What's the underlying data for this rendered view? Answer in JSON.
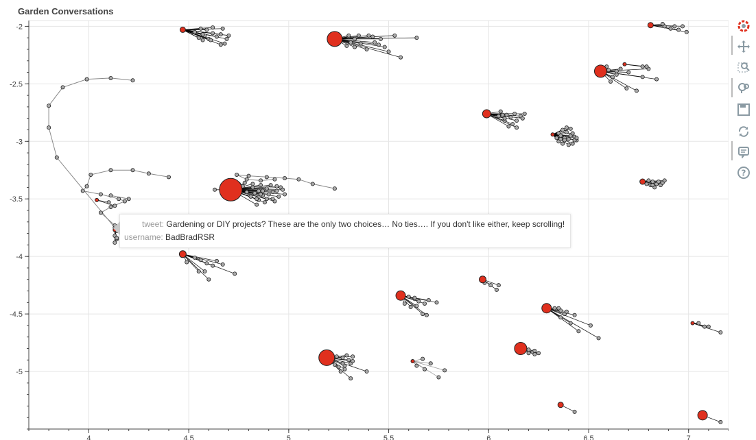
{
  "chart_data": {
    "type": "scatter",
    "title": "Garden Conversations",
    "xlim": [
      3.7,
      7.2
    ],
    "ylim": [
      -5.5,
      -1.95
    ],
    "x_ticks": [
      4,
      4.5,
      5,
      5.5,
      6,
      6.5,
      7
    ],
    "y_ticks": [
      -2,
      -2.5,
      -3,
      -3.5,
      -4,
      -4.5,
      -5
    ],
    "grid": true,
    "colors": {
      "root": "#e0301e",
      "reply": "#a9a9a9",
      "edge": "#000000",
      "edge_grey": "#888888"
    },
    "clusters": [
      {
        "root": [
          4.47,
          -2.03
        ],
        "size": 8,
        "edges": "black",
        "replies": [
          [
            4.56,
            -2.02
          ],
          [
            4.59,
            -2.03
          ],
          [
            4.62,
            -2.06
          ],
          [
            4.64,
            -2.09
          ],
          [
            4.6,
            -2.11
          ],
          [
            4.58,
            -2.08
          ],
          [
            4.55,
            -2.1
          ],
          [
            4.53,
            -2.05
          ],
          [
            4.66,
            -2.07
          ],
          [
            4.7,
            -2.08
          ],
          [
            4.69,
            -2.11
          ],
          [
            4.68,
            -2.15
          ],
          [
            4.66,
            -2.16
          ],
          [
            4.61,
            -2.12
          ],
          [
            4.57,
            -2.12
          ],
          [
            4.57,
            -2.07
          ],
          [
            4.67,
            -2.02
          ],
          [
            4.62,
            -2.01
          ]
        ]
      },
      {
        "root": [
          5.23,
          -2.11
        ],
        "size": 22,
        "edges": "black",
        "replies": [
          [
            5.3,
            -2.09
          ],
          [
            5.33,
            -2.11
          ],
          [
            5.31,
            -2.14
          ],
          [
            5.29,
            -2.17
          ],
          [
            5.33,
            -2.18
          ],
          [
            5.39,
            -2.2
          ],
          [
            5.36,
            -2.15
          ],
          [
            5.43,
            -2.14
          ],
          [
            5.46,
            -2.11
          ],
          [
            5.42,
            -2.09
          ],
          [
            5.4,
            -2.08
          ],
          [
            5.35,
            -2.08
          ],
          [
            5.3,
            -2.08
          ],
          [
            5.53,
            -2.08
          ],
          [
            5.64,
            -2.1
          ],
          [
            5.5,
            -2.22
          ],
          [
            5.56,
            -2.27
          ],
          [
            5.48,
            -2.18
          ],
          [
            5.45,
            -2.16
          ]
        ]
      },
      {
        "root": [
          6.81,
          -1.99
        ],
        "size": 8,
        "edges": "black",
        "replies": [
          [
            6.88,
            -2.0
          ],
          [
            6.91,
            -2.02
          ],
          [
            6.93,
            -2.0
          ],
          [
            6.95,
            -2.03
          ],
          [
            6.87,
            -1.98
          ],
          [
            6.97,
            -2.0
          ],
          [
            6.99,
            -2.05
          ]
        ]
      },
      {
        "root": [
          6.56,
          -2.39
        ],
        "size": 18,
        "edges": "black",
        "replies": [
          [
            6.59,
            -2.35
          ],
          [
            6.6,
            -2.38
          ],
          [
            6.64,
            -2.39
          ],
          [
            6.66,
            -2.37
          ],
          [
            6.7,
            -2.4
          ],
          [
            6.64,
            -2.42
          ],
          [
            6.62,
            -2.44
          ],
          [
            6.61,
            -2.48
          ],
          [
            6.69,
            -2.54
          ],
          [
            6.74,
            -2.56
          ],
          [
            6.77,
            -2.44
          ],
          [
            6.84,
            -2.46
          ],
          [
            6.8,
            -2.37
          ]
        ]
      },
      {
        "root": [
          6.68,
          -2.33
        ],
        "size": 5,
        "edges": "black",
        "replies": [
          [
            6.77,
            -2.35
          ],
          [
            6.79,
            -2.35
          ]
        ]
      },
      {
        "root": [
          5.99,
          -2.76
        ],
        "size": 12,
        "edges": "black",
        "replies": [
          [
            6.06,
            -2.74
          ],
          [
            6.09,
            -2.77
          ],
          [
            6.11,
            -2.79
          ],
          [
            6.14,
            -2.82
          ],
          [
            6.12,
            -2.85
          ],
          [
            6.1,
            -2.87
          ],
          [
            6.08,
            -2.82
          ],
          [
            6.05,
            -2.78
          ],
          [
            6.13,
            -2.76
          ],
          [
            6.16,
            -2.78
          ],
          [
            6.17,
            -2.8
          ],
          [
            6.18,
            -2.76
          ],
          [
            6.08,
            -2.8
          ],
          [
            6.14,
            -2.88
          ],
          [
            6.07,
            -2.77
          ]
        ]
      },
      {
        "root": [
          6.32,
          -2.94
        ],
        "size": 5,
        "edges": "black",
        "replies": [
          [
            6.35,
            -2.93
          ],
          [
            6.37,
            -2.9
          ],
          [
            6.39,
            -2.92
          ],
          [
            6.41,
            -2.95
          ],
          [
            6.43,
            -2.96
          ],
          [
            6.44,
            -2.99
          ],
          [
            6.42,
            -3.02
          ],
          [
            6.4,
            -3.03
          ],
          [
            6.37,
            -3.02
          ],
          [
            6.35,
            -3.0
          ],
          [
            6.34,
            -2.97
          ],
          [
            6.36,
            -2.95
          ],
          [
            6.38,
            -2.97
          ],
          [
            6.4,
            -2.98
          ],
          [
            6.42,
            -2.93
          ],
          [
            6.39,
            -2.88
          ],
          [
            6.41,
            -2.89
          ],
          [
            6.38,
            -2.99
          ],
          [
            6.36,
            -2.98
          ],
          [
            6.43,
            -2.99
          ],
          [
            6.44,
            -2.97
          ]
        ]
      },
      {
        "root": [
          6.77,
          -3.35
        ],
        "size": 8,
        "edges": "black",
        "replies": [
          [
            6.8,
            -3.34
          ],
          [
            6.82,
            -3.35
          ],
          [
            6.84,
            -3.37
          ],
          [
            6.86,
            -3.38
          ],
          [
            6.83,
            -3.4
          ],
          [
            6.81,
            -3.38
          ],
          [
            6.85,
            -3.35
          ],
          [
            6.87,
            -3.36
          ],
          [
            6.88,
            -3.34
          ],
          [
            6.82,
            -3.38
          ],
          [
            6.79,
            -3.37
          ]
        ]
      },
      {
        "root": [
          4.71,
          -3.42
        ],
        "size": 33,
        "edges": "black",
        "replies": [
          [
            4.77,
            -3.39
          ],
          [
            4.82,
            -3.4
          ],
          [
            4.85,
            -3.43
          ],
          [
            4.87,
            -3.47
          ],
          [
            4.89,
            -3.5
          ],
          [
            4.93,
            -3.52
          ],
          [
            4.95,
            -3.48
          ],
          [
            4.92,
            -3.44
          ],
          [
            4.89,
            -3.41
          ],
          [
            4.86,
            -3.38
          ],
          [
            4.82,
            -3.37
          ],
          [
            4.78,
            -3.36
          ],
          [
            4.75,
            -3.37
          ],
          [
            4.83,
            -3.45
          ],
          [
            4.87,
            -3.43
          ],
          [
            4.9,
            -3.46
          ],
          [
            4.94,
            -3.43
          ],
          [
            4.96,
            -3.4
          ],
          [
            4.94,
            -3.39
          ],
          [
            4.91,
            -3.38
          ],
          [
            4.88,
            -3.53
          ],
          [
            4.85,
            -3.51
          ],
          [
            4.81,
            -3.48
          ],
          [
            4.84,
            -3.5
          ],
          [
            4.98,
            -3.46
          ],
          [
            4.97,
            -3.42
          ],
          [
            4.63,
            -3.42
          ],
          [
            4.67,
            -3.45
          ],
          [
            4.84,
            -3.55
          ],
          [
            4.79,
            -3.44
          ],
          [
            4.86,
            -3.46
          ],
          [
            4.92,
            -3.5
          ]
        ]
      },
      {
        "root": [
          4.47,
          -3.98
        ],
        "size": 10,
        "edges": "black",
        "replies": [
          [
            4.53,
            -4.01
          ],
          [
            4.56,
            -4.03
          ],
          [
            4.59,
            -4.06
          ],
          [
            4.62,
            -4.08
          ],
          [
            4.55,
            -4.13
          ],
          [
            4.58,
            -4.13
          ],
          [
            4.6,
            -4.2
          ],
          [
            4.49,
            -4.05
          ],
          [
            4.64,
            -4.04
          ],
          [
            4.67,
            -4.07
          ],
          [
            4.73,
            -4.15
          ]
        ]
      },
      {
        "root": [
          4.13,
          -3.77
        ],
        "size": 5,
        "edges": "black",
        "replies": [
          [
            4.14,
            -3.78
          ],
          [
            4.13,
            -3.82
          ],
          [
            4.14,
            -3.85
          ],
          [
            4.13,
            -3.88
          ],
          [
            4.14,
            -3.84
          ]
        ]
      },
      {
        "root": [
          4.04,
          -3.51
        ],
        "size": 5,
        "edges": "black",
        "replies": [
          [
            4.1,
            -3.53
          ],
          [
            4.13,
            -3.56
          ]
        ]
      },
      {
        "root": [
          5.97,
          -4.2
        ],
        "size": 10,
        "edges": "black",
        "replies": [
          [
            5.98,
            -4.23
          ],
          [
            6.01,
            -4.25
          ],
          [
            6.05,
            -4.25
          ],
          [
            6.04,
            -4.29
          ]
        ]
      },
      {
        "root": [
          5.56,
          -4.34
        ],
        "size": 14,
        "edges": "black",
        "replies": [
          [
            5.6,
            -4.35
          ],
          [
            5.63,
            -4.37
          ],
          [
            5.65,
            -4.39
          ],
          [
            5.68,
            -4.41
          ],
          [
            5.64,
            -4.43
          ],
          [
            5.61,
            -4.44
          ],
          [
            5.58,
            -4.41
          ],
          [
            5.7,
            -4.38
          ],
          [
            5.74,
            -4.4
          ],
          [
            5.69,
            -4.51
          ],
          [
            5.67,
            -4.5
          ],
          [
            5.63,
            -4.36
          ]
        ]
      },
      {
        "root": [
          6.29,
          -4.45
        ],
        "size": 14,
        "edges": "black",
        "replies": [
          [
            6.33,
            -4.45
          ],
          [
            6.36,
            -4.47
          ],
          [
            6.38,
            -4.5
          ],
          [
            6.36,
            -4.53
          ],
          [
            6.35,
            -4.45
          ],
          [
            6.43,
            -4.51
          ],
          [
            6.41,
            -4.58
          ],
          [
            6.45,
            -4.65
          ],
          [
            6.51,
            -4.6
          ],
          [
            6.55,
            -4.71
          ],
          [
            6.39,
            -4.48
          ]
        ]
      },
      {
        "root": [
          7.02,
          -4.58
        ],
        "size": 5,
        "edges": "black",
        "replies": [
          [
            7.05,
            -4.58
          ],
          [
            7.08,
            -4.61
          ],
          [
            7.1,
            -4.61
          ],
          [
            7.16,
            -4.66
          ]
        ]
      },
      {
        "root": [
          5.19,
          -4.88
        ],
        "size": 23,
        "edges": "black",
        "replies": [
          [
            5.24,
            -4.87
          ],
          [
            5.27,
            -4.88
          ],
          [
            5.3,
            -4.9
          ],
          [
            5.31,
            -4.93
          ],
          [
            5.28,
            -4.95
          ],
          [
            5.25,
            -4.96
          ],
          [
            5.23,
            -4.94
          ],
          [
            5.22,
            -4.91
          ],
          [
            5.29,
            -4.86
          ],
          [
            5.32,
            -4.87
          ],
          [
            5.32,
            -4.91
          ],
          [
            5.27,
            -4.93
          ],
          [
            5.39,
            -5.0
          ],
          [
            5.31,
            -5.06
          ],
          [
            5.26,
            -5.0
          ],
          [
            5.28,
            -4.98
          ]
        ]
      },
      {
        "root": [
          6.16,
          -4.8
        ],
        "size": 18,
        "edges": "black",
        "replies": [
          [
            6.2,
            -4.81
          ],
          [
            6.22,
            -4.83
          ],
          [
            6.23,
            -4.85
          ],
          [
            6.2,
            -4.84
          ],
          [
            6.25,
            -4.84
          ],
          [
            6.23,
            -4.82
          ]
        ]
      },
      {
        "root": [
          5.62,
          -4.91
        ],
        "size": 5,
        "edges": "grey",
        "replies": [
          [
            5.67,
            -4.89
          ],
          [
            5.71,
            -4.93
          ],
          [
            5.78,
            -4.99
          ],
          [
            5.64,
            -4.95
          ],
          [
            5.68,
            -4.98
          ],
          [
            5.75,
            -5.05
          ]
        ]
      },
      {
        "root": [
          6.36,
          -5.29
        ],
        "size": 8,
        "edges": "black",
        "replies": [
          [
            6.43,
            -5.35
          ]
        ]
      },
      {
        "root": [
          7.07,
          -5.38
        ],
        "size": 14,
        "edges": "black",
        "replies": [
          [
            7.16,
            -5.44
          ]
        ]
      }
    ],
    "chains": [
      [
        [
          4.22,
          -2.47
        ],
        [
          4.11,
          -2.45
        ],
        [
          3.99,
          -2.46
        ],
        [
          3.87,
          -2.53
        ],
        [
          3.8,
          -2.69
        ],
        [
          3.8,
          -2.88
        ],
        [
          3.84,
          -3.14
        ],
        [
          4.13,
          -3.75
        ]
      ],
      [
        [
          4.4,
          -3.31
        ],
        [
          4.3,
          -3.28
        ],
        [
          4.22,
          -3.25
        ],
        [
          4.11,
          -3.25
        ],
        [
          4.01,
          -3.29
        ],
        [
          3.99,
          -3.39
        ],
        [
          3.97,
          -3.43
        ],
        [
          4.06,
          -3.46
        ],
        [
          4.15,
          -3.5
        ],
        [
          4.18,
          -3.52
        ],
        [
          4.11,
          -3.57
        ],
        [
          4.06,
          -3.62
        ],
        [
          4.13,
          -3.73
        ]
      ],
      [
        [
          5.23,
          -3.41
        ],
        [
          5.12,
          -3.37
        ],
        [
          5.05,
          -3.33
        ],
        [
          4.98,
          -3.32
        ],
        [
          4.89,
          -3.31
        ],
        [
          4.8,
          -3.3
        ],
        [
          4.74,
          -3.29
        ],
        [
          4.79,
          -3.33
        ],
        [
          4.86,
          -3.34
        ],
        [
          4.93,
          -3.33
        ]
      ],
      [
        [
          4.11,
          -3.47
        ],
        [
          4.2,
          -3.5
        ]
      ]
    ]
  },
  "tooltip": {
    "tweet_key": "tweet:",
    "tweet": "Gardening or DIY projects? These are the only two choices… No ties…. If you don't like either, keep scrolling!",
    "username_key": "username:",
    "username": "BadBradRSR"
  },
  "toolbar": {
    "tools": [
      "bokeh-logo-icon",
      "pan-icon",
      "box-zoom-icon",
      "wheel-zoom-icon",
      "save-icon",
      "reset-icon",
      "hover-icon",
      "help-icon"
    ]
  }
}
